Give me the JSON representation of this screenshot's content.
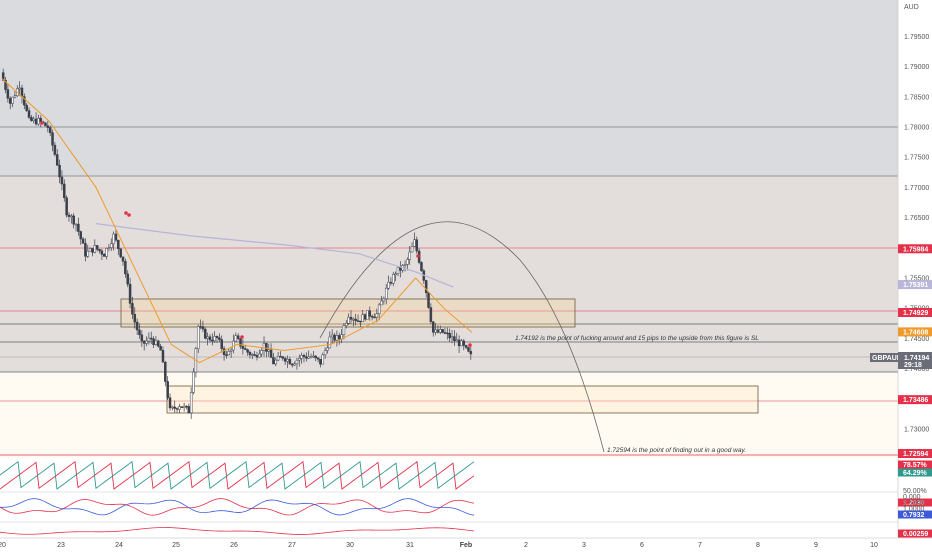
{
  "symbol": "GBPAUD",
  "currency": "AUD",
  "last_price": "1.74194",
  "countdown": "29:18",
  "price_labels": [
    {
      "value": "1.75984",
      "price": 1.75984,
      "color": "#e5304a"
    },
    {
      "value": "1.75391",
      "price": 1.75391,
      "color": "#b9b6da"
    },
    {
      "value": "1.74929",
      "price": 1.74929,
      "color": "#e5304a"
    },
    {
      "value": "1.74608",
      "price": 1.74608,
      "color": "#ef9a2a"
    },
    {
      "value": "1.73486",
      "price": 1.73486,
      "color": "#e5304a"
    },
    {
      "value": "1.72594",
      "price": 1.72594,
      "color": "#e5304a"
    }
  ],
  "annotations": [
    "1.74192 is the point of fucking around and 15 pips to the upside from this figure is SL",
    "1.72594 is the point of finding out in a good way."
  ],
  "indicator_labels": [
    {
      "value": "78.57%",
      "color": "#e5304a"
    },
    {
      "value": "64.29%",
      "color": "#2e9a8e"
    },
    {
      "value": "1.2030",
      "color": "#e5304a"
    },
    {
      "value": "0.7932",
      "color": "#3d5bd9"
    },
    {
      "value": "0.00259",
      "color": "#e5304a"
    }
  ],
  "indicator_ticks": [
    "50.00%",
    "0.000",
    "1.5000",
    "1.0000"
  ],
  "chart_data": {
    "type": "candlestick",
    "y_ticks": [
      1.795,
      1.79,
      1.785,
      1.78,
      1.775,
      1.77,
      1.765,
      1.755,
      1.75,
      1.745,
      1.74,
      1.73
    ],
    "y_tick_labels": [
      "1.79500",
      "1.79000",
      "1.78500",
      "1.78000",
      "1.77500",
      "1.77000",
      "1.76500",
      "1.75500",
      "1.75000",
      "1.74500",
      "1.74000",
      "1.73000"
    ],
    "ylim": [
      1.7245,
      1.8
    ],
    "x_ticks": [
      "20",
      "23",
      "24",
      "25",
      "26",
      "27",
      "30",
      "31",
      "Feb",
      "2",
      "3",
      "6",
      "7",
      "8",
      "9",
      "10"
    ],
    "close_path": [
      [
        0,
        1.789
      ],
      [
        1,
        1.784
      ],
      [
        2,
        1.787
      ],
      [
        3,
        1.781
      ],
      [
        4,
        1.781
      ],
      [
        5,
        1.78
      ],
      [
        6,
        1.774
      ],
      [
        7,
        1.766
      ],
      [
        8,
        1.764
      ],
      [
        9,
        1.759
      ],
      [
        10,
        1.76
      ],
      [
        11,
        1.759
      ],
      [
        12,
        1.762
      ],
      [
        13,
        1.758
      ],
      [
        14,
        1.749
      ],
      [
        15,
        1.744
      ],
      [
        16,
        1.745
      ],
      [
        17,
        1.743
      ],
      [
        18,
        1.733
      ],
      [
        19,
        1.734
      ],
      [
        20,
        1.733
      ],
      [
        21,
        1.747
      ],
      [
        22,
        1.745
      ],
      [
        23,
        1.745
      ],
      [
        24,
        1.742
      ],
      [
        25,
        1.745
      ],
      [
        26,
        1.743
      ],
      [
        27,
        1.742
      ],
      [
        28,
        1.744
      ],
      [
        29,
        1.741
      ],
      [
        30,
        1.742
      ],
      [
        31,
        1.741
      ],
      [
        32,
        1.742
      ],
      [
        33,
        1.742
      ],
      [
        34,
        1.741
      ],
      [
        35,
        1.745
      ],
      [
        36,
        1.745
      ],
      [
        37,
        1.749
      ],
      [
        38,
        1.748
      ],
      [
        39,
        1.749
      ],
      [
        40,
        1.749
      ],
      [
        41,
        1.753
      ],
      [
        42,
        1.756
      ],
      [
        43,
        1.757
      ],
      [
        44,
        1.761
      ],
      [
        45,
        1.755
      ],
      [
        46,
        1.746
      ],
      [
        47,
        1.746
      ],
      [
        48,
        1.745
      ],
      [
        49,
        1.744
      ],
      [
        50,
        1.742
      ]
    ],
    "ema_path": [
      [
        0,
        1.788
      ],
      [
        5,
        1.781
      ],
      [
        10,
        1.77
      ],
      [
        14,
        1.757
      ],
      [
        18,
        1.744
      ],
      [
        21,
        1.741
      ],
      [
        25,
        1.744
      ],
      [
        30,
        1.743
      ],
      [
        35,
        1.744
      ],
      [
        40,
        1.748
      ],
      [
        44,
        1.755
      ],
      [
        47,
        1.75
      ],
      [
        50,
        1.746
      ]
    ],
    "ma_path": [
      [
        10,
        1.764
      ],
      [
        20,
        1.762
      ],
      [
        30,
        1.7605
      ],
      [
        38,
        1.759
      ],
      [
        44,
        1.756
      ],
      [
        48,
        1.7535
      ]
    ],
    "horizontal_levels": [
      1.78,
      1.772,
      1.75984,
      1.74929,
      1.74608,
      1.74194,
      1.73486,
      1.72594
    ],
    "zones": [
      {
        "name": "supply",
        "from": 1.752,
        "to": 1.772
      },
      {
        "name": "demand",
        "from": 1.72594,
        "to": 1.7398
      }
    ],
    "boxes": [
      {
        "from": 1.7495,
        "to": 1.7528
      },
      {
        "from": 1.7334,
        "to": 1.7378
      }
    ]
  }
}
